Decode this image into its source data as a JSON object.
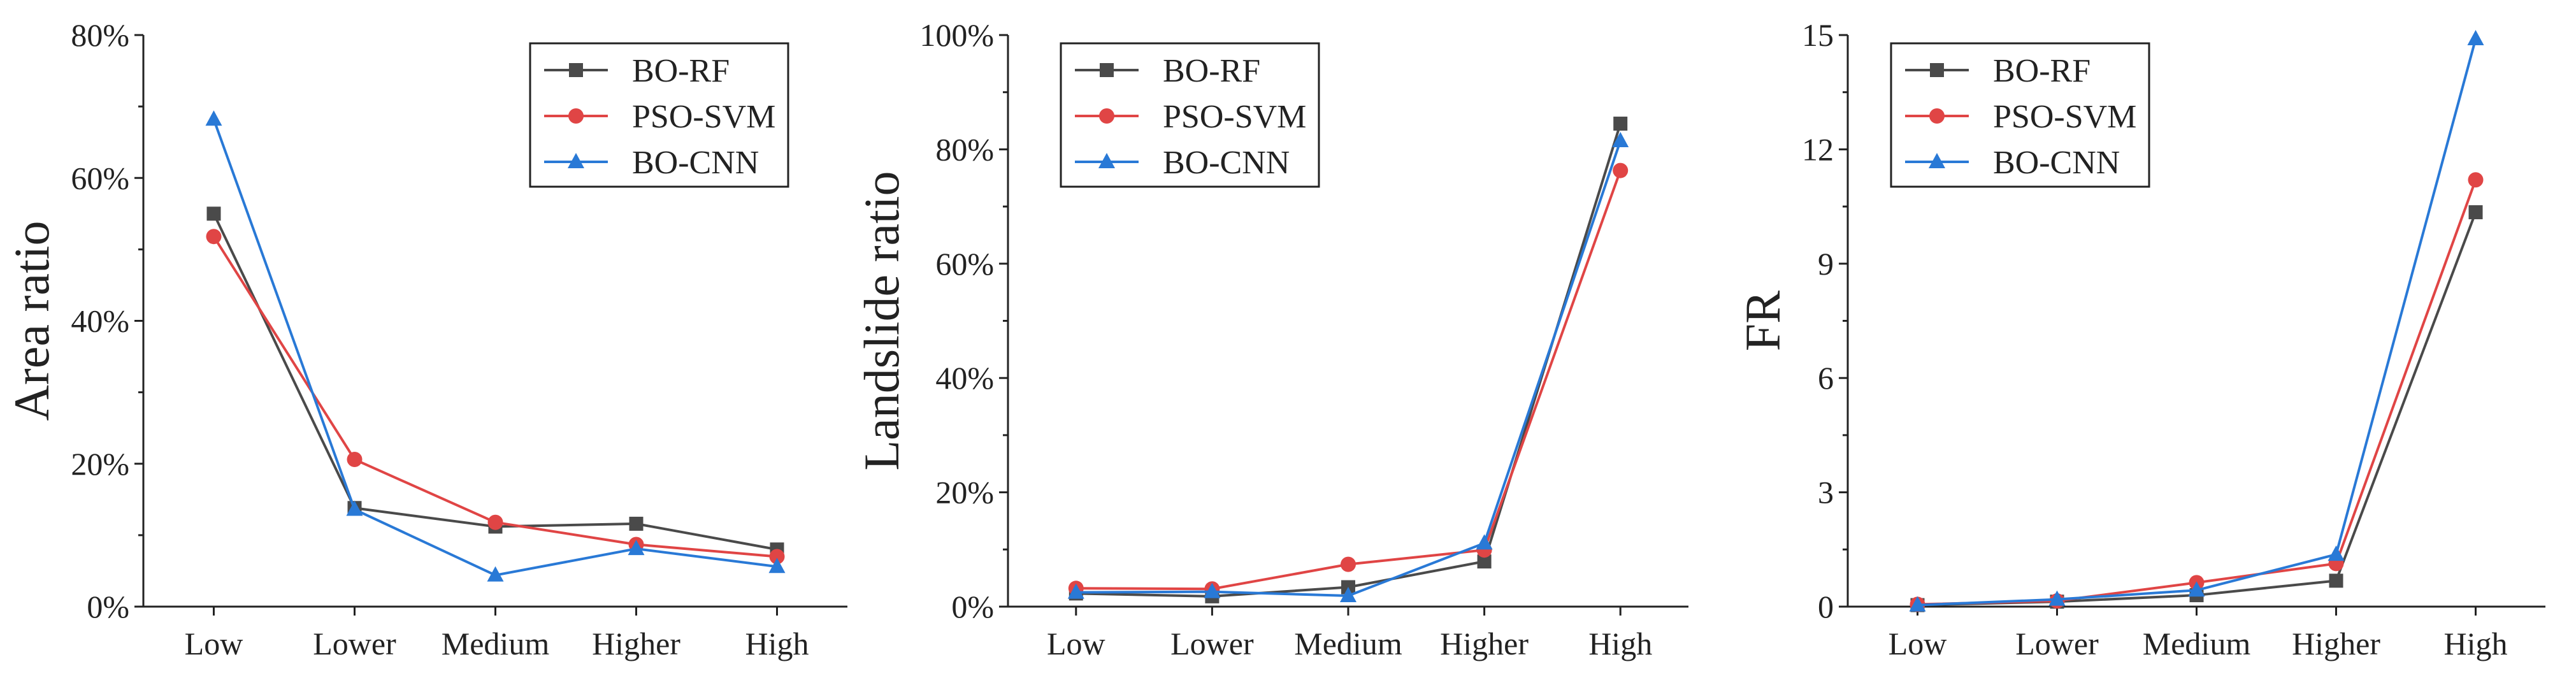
{
  "colors": {
    "BO-RF": "#4a4a4a",
    "PSO-SVM": "#e04545",
    "BO-CNN": "#2979d6"
  },
  "markers": {
    "BO-RF": "square",
    "PSO-SVM": "circle",
    "BO-CNN": "triangle"
  },
  "chart_data": [
    {
      "type": "line",
      "categories": [
        "Low",
        "Lower",
        "Medium",
        "Higher",
        "High"
      ],
      "ylabel": "Area ratio",
      "ylim": [
        0,
        80
      ],
      "yticks": [
        0,
        20,
        40,
        60,
        80
      ],
      "ytick_labels": [
        "0%",
        "20%",
        "40%",
        "60%",
        "80%"
      ],
      "legend": "top-right",
      "series": [
        {
          "name": "BO-RF",
          "values": [
            55.0,
            13.8,
            11.2,
            11.6,
            8.0
          ]
        },
        {
          "name": "PSO-SVM",
          "values": [
            51.8,
            20.6,
            11.8,
            8.7,
            7.0
          ]
        },
        {
          "name": "BO-CNN",
          "values": [
            68.2,
            13.6,
            4.4,
            8.1,
            5.6
          ]
        }
      ]
    },
    {
      "type": "line",
      "categories": [
        "Low",
        "Lower",
        "Medium",
        "Higher",
        "High"
      ],
      "ylabel": "Landslide ratio",
      "ylim": [
        0,
        100
      ],
      "yticks": [
        0,
        20,
        40,
        60,
        80,
        100
      ],
      "ytick_labels": [
        "0%",
        "20%",
        "40%",
        "60%",
        "80%",
        "100%"
      ],
      "legend": "top-left",
      "series": [
        {
          "name": "BO-RF",
          "values": [
            2.3,
            1.8,
            3.4,
            7.9,
            84.5
          ]
        },
        {
          "name": "PSO-SVM",
          "values": [
            3.2,
            3.1,
            7.4,
            9.9,
            76.3
          ]
        },
        {
          "name": "BO-CNN",
          "values": [
            2.5,
            2.6,
            1.9,
            11.1,
            81.5
          ]
        }
      ]
    },
    {
      "type": "line",
      "categories": [
        "Low",
        "Lower",
        "Medium",
        "Higher",
        "High"
      ],
      "ylabel": "FR",
      "ylim": [
        0,
        15
      ],
      "yticks": [
        0,
        3,
        6,
        9,
        12,
        15
      ],
      "ytick_labels": [
        "0",
        "3",
        "6",
        "9",
        "12",
        "15"
      ],
      "legend": "top-left",
      "series": [
        {
          "name": "BO-RF",
          "values": [
            0.04,
            0.13,
            0.3,
            0.68,
            10.35
          ]
        },
        {
          "name": "PSO-SVM",
          "values": [
            0.06,
            0.15,
            0.63,
            1.13,
            11.2
          ]
        },
        {
          "name": "BO-CNN",
          "values": [
            0.04,
            0.19,
            0.43,
            1.37,
            14.9
          ]
        }
      ]
    }
  ]
}
